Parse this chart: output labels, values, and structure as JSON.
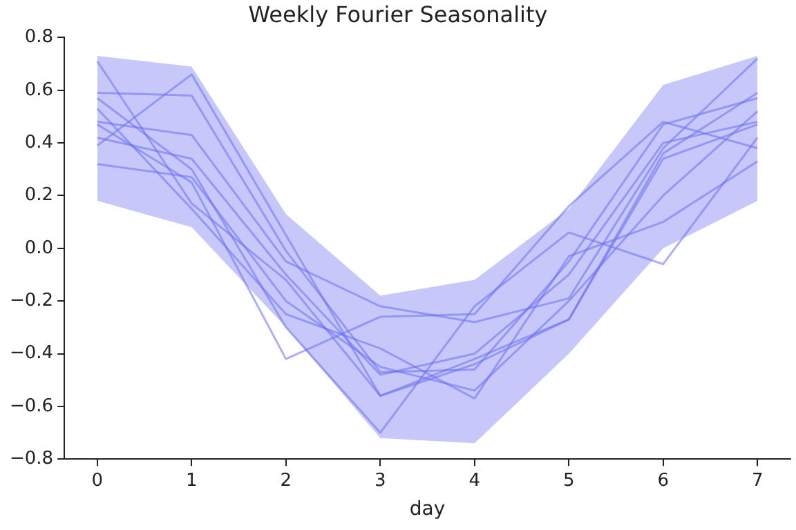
{
  "chart_data": {
    "type": "line",
    "title": "Weekly Fourier Seasonality",
    "xlabel": "day",
    "x": [
      0,
      1,
      2,
      3,
      4,
      5,
      6,
      7
    ],
    "series": [
      {
        "color": "#6b6ff0",
        "values": [
          0.71,
          0.17,
          -0.12,
          -0.56,
          -0.44,
          -0.27,
          0.36,
          0.59
        ],
        "lower": [
          0.18,
          0.08,
          -0.3,
          -0.72,
          -0.74,
          -0.4,
          0.0,
          0.18
        ],
        "upper": [
          0.73,
          0.69,
          0.13,
          -0.18,
          -0.12,
          0.15,
          0.62,
          0.73
        ]
      },
      {
        "color": "#6b6ff0",
        "values": [
          0.59,
          0.58,
          -0.01,
          -0.47,
          -0.46,
          -0.05,
          0.47,
          0.57
        ]
      },
      {
        "color": "#6b6ff0",
        "values": [
          0.57,
          0.3,
          -0.3,
          -0.7,
          -0.22,
          0.06,
          -0.06,
          0.42
        ]
      },
      {
        "color": "#6b6ff0",
        "values": [
          0.48,
          0.43,
          -0.05,
          -0.22,
          -0.28,
          -0.19,
          0.38,
          0.72
        ]
      },
      {
        "color": "#6b6ff0",
        "values": [
          0.47,
          0.25,
          -0.42,
          -0.26,
          -0.25,
          0.16,
          0.48,
          0.38
        ]
      },
      {
        "color": "#6b6ff0",
        "values": [
          0.39,
          0.66,
          0.05,
          -0.56,
          -0.42,
          -0.27,
          0.34,
          0.47
        ]
      },
      {
        "color": "#6b6ff0",
        "values": [
          0.32,
          0.27,
          -0.2,
          -0.45,
          -0.54,
          -0.2,
          0.2,
          0.52
        ]
      },
      {
        "color": "#6b6ff0",
        "values": [
          0.53,
          0.15,
          -0.25,
          -0.38,
          -0.57,
          -0.03,
          0.1,
          0.33
        ]
      },
      {
        "color": "#6b6ff0",
        "values": [
          0.42,
          0.34,
          -0.1,
          -0.48,
          -0.4,
          -0.1,
          0.4,
          0.48
        ]
      }
    ],
    "xlim": [
      -0.35,
      7.35
    ],
    "xticks": [
      0,
      1,
      2,
      3,
      4,
      5,
      6,
      7
    ],
    "ylim": [
      -0.8,
      0.8
    ],
    "yticks": [
      {
        "value": -0.8,
        "label": "−0.8"
      },
      {
        "value": -0.6,
        "label": "−0.6"
      },
      {
        "value": -0.4,
        "label": "−0.4"
      },
      {
        "value": -0.2,
        "label": "−0.2"
      },
      {
        "value": 0,
        "label": "0.0"
      },
      {
        "value": 0.2,
        "label": "0.2"
      },
      {
        "value": 0.4,
        "label": "0.4"
      },
      {
        "value": 0.6,
        "label": "0.6"
      },
      {
        "value": 0.8,
        "label": "0.8"
      }
    ],
    "grid": false,
    "legend": false,
    "marker": "none",
    "line_style": "solid"
  }
}
